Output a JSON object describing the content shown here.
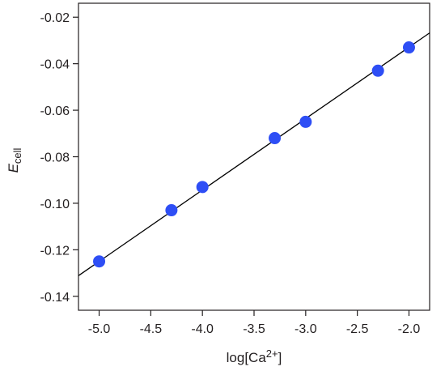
{
  "chart_data": {
    "type": "scatter",
    "xlabel": {
      "base": "log[Ca",
      "sup": "2+",
      "end": "]"
    },
    "ylabel": {
      "main": "E",
      "sub": "cell"
    },
    "xlim": [
      -5.2,
      -1.8
    ],
    "ylim": [
      -0.146,
      -0.014
    ],
    "xticks": [
      -5.0,
      -4.5,
      -4.0,
      -3.5,
      -3.0,
      -2.5,
      -2.0
    ],
    "xtick_labels": [
      "-5.0",
      "-4.5",
      "-4.0",
      "-3.5",
      "-3.0",
      "-2.5",
      "-2.0"
    ],
    "yticks": [
      -0.02,
      -0.04,
      -0.06,
      -0.08,
      -0.1,
      -0.12,
      -0.14
    ],
    "ytick_labels": [
      "-0.02",
      "-0.04",
      "-0.06",
      "-0.08",
      "-0.10",
      "-0.12",
      "-0.14"
    ],
    "series": [
      {
        "x": [
          -5.0,
          -4.3,
          -4.0,
          -3.3,
          -3.0,
          -2.3,
          -2.0
        ],
        "y": [
          -0.125,
          -0.103,
          -0.093,
          -0.072,
          -0.065,
          -0.043,
          -0.033
        ],
        "color": "#2e4ef5"
      }
    ],
    "fit_line": {
      "slope": 0.0307,
      "intercept": 0.0285,
      "color": "#000000"
    },
    "grid": false,
    "legend": "none"
  }
}
